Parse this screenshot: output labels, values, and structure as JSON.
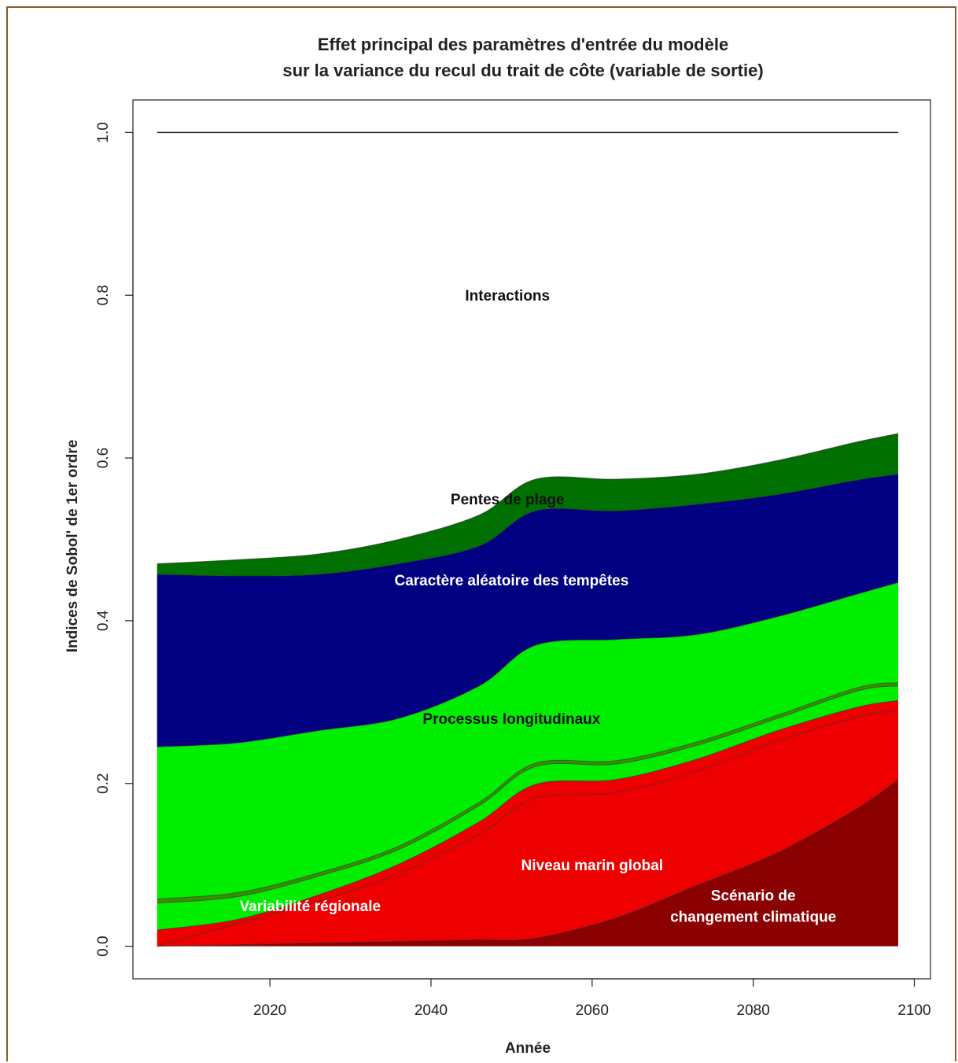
{
  "chart_data": {
    "type": "area",
    "title_line1": "Effet principal des paramètres d'entrée du modèle",
    "title_line2": "sur la variance du recul du trait de côte (variable de sortie)",
    "xlabel": "Année",
    "ylabel": "Indices de Sobol' de 1er ordre",
    "xlim": [
      2003,
      2102
    ],
    "ylim": [
      -0.04,
      1.04
    ],
    "xticks": [
      "2020",
      "2040",
      "2060",
      "2080",
      "2100"
    ],
    "yticks": [
      "0.0",
      "0.2",
      "0.4",
      "0.6",
      "0.8",
      "1.0"
    ],
    "x": [
      2006,
      2016,
      2026,
      2036,
      2046,
      2053,
      2063,
      2073,
      2083,
      2093,
      2098
    ],
    "stack_order": "bottom-to-top",
    "series": [
      {
        "name": "Scénario de changement climatique",
        "color": "#8b0000",
        "values": [
          0.0,
          0.002,
          0.004,
          0.006,
          0.008,
          0.01,
          0.035,
          0.075,
          0.115,
          0.17,
          0.205
        ]
      },
      {
        "name": "Niveau marin global",
        "color": "#ee0000",
        "values": [
          0.0,
          0.026,
          0.051,
          0.083,
          0.13,
          0.172,
          0.154,
          0.14,
          0.137,
          0.112,
          0.085
        ]
      },
      {
        "name": "",
        "color": "#ee0000",
        "values": [
          0.02,
          0.005,
          0.008,
          0.012,
          0.015,
          0.017,
          0.016,
          0.015,
          0.013,
          0.012,
          0.012
        ]
      },
      {
        "name": "Variabilité régionale",
        "color": "#00ee00",
        "values": [
          0.033,
          0.028,
          0.023,
          0.018,
          0.02,
          0.022,
          0.019,
          0.017,
          0.015,
          0.02,
          0.018
        ]
      },
      {
        "name": "",
        "color": "#3a8f00",
        "values": [
          0.005,
          0.005,
          0.004,
          0.004,
          0.004,
          0.004,
          0.004,
          0.004,
          0.004,
          0.004,
          0.004
        ]
      },
      {
        "name": "Processus longitudinaux",
        "color": "#00ee00",
        "values": [
          0.187,
          0.184,
          0.175,
          0.157,
          0.143,
          0.145,
          0.149,
          0.132,
          0.121,
          0.115,
          0.123
        ]
      },
      {
        "name": "Caractère aléatoire des tempêtes",
        "color": "#000080",
        "values": [
          0.212,
          0.205,
          0.192,
          0.19,
          0.172,
          0.165,
          0.158,
          0.16,
          0.15,
          0.14,
          0.133
        ]
      },
      {
        "name": "Pentes de plage",
        "color": "#007000",
        "values": [
          0.013,
          0.02,
          0.025,
          0.03,
          0.038,
          0.039,
          0.039,
          0.037,
          0.042,
          0.047,
          0.05
        ]
      }
    ],
    "reference_line": {
      "y": 1.0,
      "x": [
        2006,
        2098
      ]
    },
    "annotations": [
      {
        "text": "Interactions",
        "x": 2049.5,
        "y": 0.8,
        "color": "#111111"
      },
      {
        "text": "Pentes de plage",
        "x": 2049.5,
        "y": 0.55,
        "color": "#111111"
      },
      {
        "text": "Caractère aléatoire des tempêtes",
        "x": 2050,
        "y": 0.45,
        "color": "#ffffff"
      },
      {
        "text": "Processus longitudinaux",
        "x": 2050,
        "y": 0.28,
        "color": "#111111"
      },
      {
        "text": "Niveau marin global",
        "x": 2060,
        "y": 0.1,
        "color": "#ffffff"
      },
      {
        "text": "Variabilité régionale",
        "x": 2025,
        "y": 0.05,
        "color": "#ffffff"
      },
      {
        "text": "Scénario de",
        "x": 2080,
        "y": 0.063,
        "color": "#ffffff"
      },
      {
        "text": "changement climatique",
        "x": 2080,
        "y": 0.037,
        "color": "#ffffff"
      }
    ],
    "grid": false,
    "legend": "none"
  }
}
